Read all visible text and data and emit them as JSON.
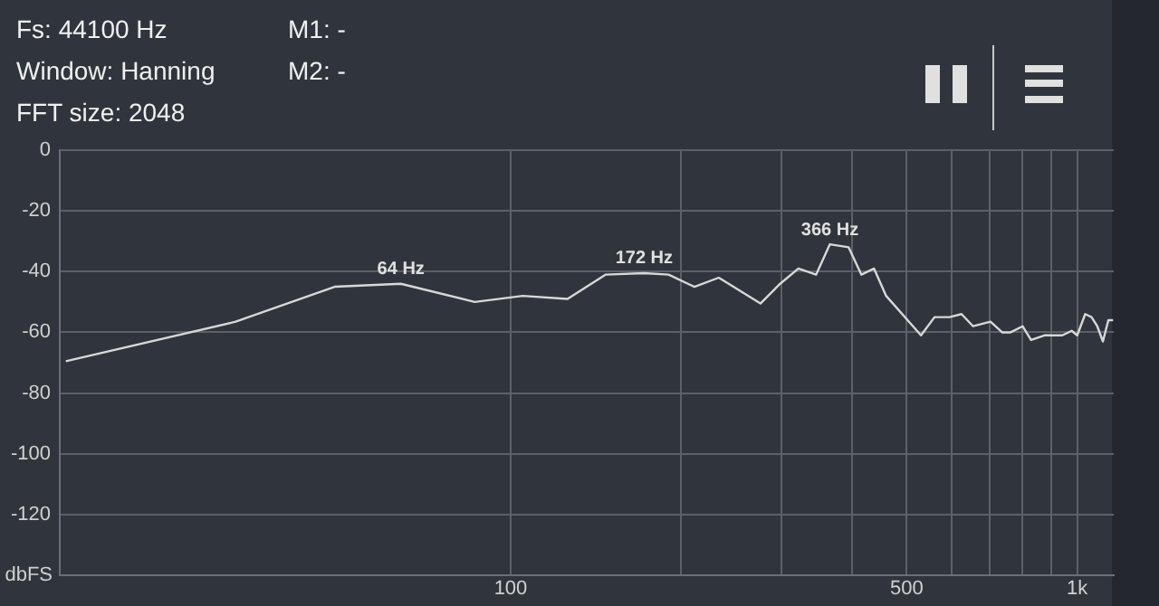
{
  "chart_data": {
    "type": "line",
    "ylabel": "dbFS",
    "annotations": [
      "Fs: 44100 Hz",
      "Window: Hanning",
      "FFT size: 2048",
      "M1: -",
      "M2: -",
      {
        "text": "64 Hz",
        "x": 64,
        "y": -44
      },
      {
        "text": "172 Hz",
        "x": 172,
        "y": -40.5
      },
      {
        "text": "366 Hz",
        "x": 366,
        "y": -31
      }
    ],
    "log": "x",
    "grid": true,
    "legend": false,
    "marker": "none",
    "line_style": "solid",
    "xlim": [
      16,
      1160
    ],
    "xticks": [
      {
        "value": 100,
        "label": "100"
      },
      {
        "value": 200,
        "label": null
      },
      {
        "value": 300,
        "label": null
      },
      {
        "value": 400,
        "label": null
      },
      {
        "value": 500,
        "label": "500"
      },
      {
        "value": 600,
        "label": null
      },
      {
        "value": 700,
        "label": null
      },
      {
        "value": 800,
        "label": null
      },
      {
        "value": 900,
        "label": null
      },
      {
        "value": 1000,
        "label": "1k"
      }
    ],
    "ylim": [
      -140,
      0
    ],
    "yticks": [
      0,
      -20,
      -40,
      -60,
      -80,
      -100,
      -120
    ],
    "x": [
      16.4,
      32.7,
      48.9,
      64,
      86.4,
      105,
      126,
      147,
      172,
      190,
      211,
      233,
      276,
      299,
      322,
      346,
      366,
      395,
      416,
      438,
      460,
      530,
      560,
      595,
      625,
      655,
      703,
      737,
      763,
      801,
      829,
      875,
      941,
      978,
      1000,
      1033,
      1060,
      1085,
      1110,
      1135,
      1157
    ],
    "series": [
      {
        "color": "#d8d8d8",
        "values": [
          -69.5,
          -56.5,
          -45,
          -44,
          -50,
          -48,
          -49,
          -41,
          -40.5,
          -41,
          -45,
          -42,
          -50.5,
          -44,
          -39,
          -41,
          -31,
          -32,
          -41,
          -39,
          -48,
          -61,
          -55,
          -55,
          -54,
          -58,
          -56.5,
          -60,
          -60,
          -58,
          -62.5,
          -61,
          -61,
          -59.5,
          -61,
          -54,
          -55,
          -58,
          -63,
          -56,
          -56
        ]
      }
    ]
  }
}
